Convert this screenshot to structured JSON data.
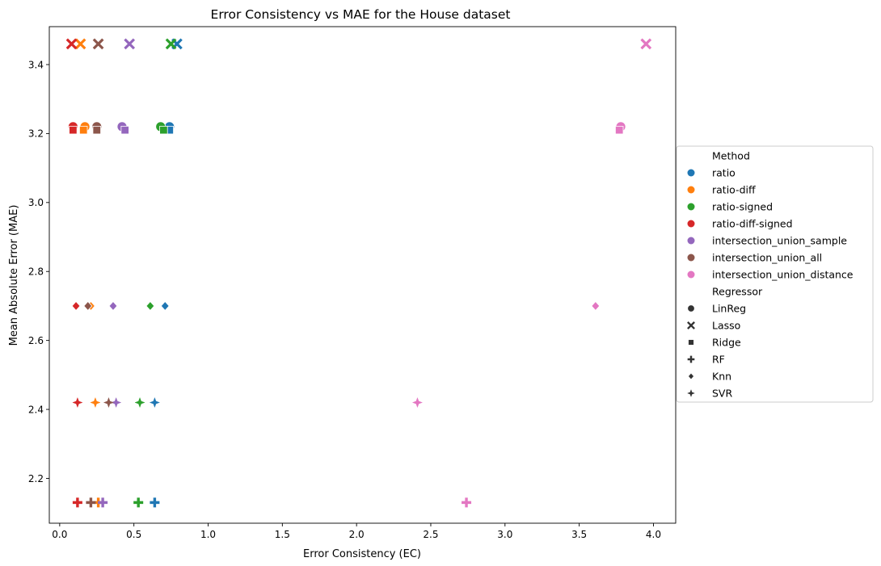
{
  "chart_data": {
    "type": "scatter",
    "title": "Error Consistency vs MAE for the House dataset",
    "xlabel": "Error Consistency (EC)",
    "ylabel": "Mean Absolute Error (MAE)",
    "xlim": [
      -0.07,
      4.15
    ],
    "ylim": [
      2.07,
      3.51
    ],
    "xticks": [
      0.0,
      0.5,
      1.0,
      1.5,
      2.0,
      2.5,
      3.0,
      3.5,
      4.0
    ],
    "xtick_labels": [
      "0.0",
      "0.5",
      "1.0",
      "1.5",
      "2.0",
      "2.5",
      "3.0",
      "3.5",
      "4.0"
    ],
    "yticks": [
      2.2,
      2.4,
      2.6,
      2.8,
      3.0,
      3.2,
      3.4
    ],
    "ytick_labels": [
      "2.2",
      "2.4",
      "2.6",
      "2.8",
      "3.0",
      "3.2",
      "3.4"
    ],
    "grid": false,
    "legend": {
      "placement": "right",
      "hue_title": "Method",
      "style_title": "Regressor"
    },
    "methods": [
      {
        "name": "ratio",
        "color": "#1f77b4"
      },
      {
        "name": "ratio-diff",
        "color": "#ff7f0e"
      },
      {
        "name": "ratio-signed",
        "color": "#2ca02c"
      },
      {
        "name": "ratio-diff-signed",
        "color": "#d62728"
      },
      {
        "name": "intersection_union_sample",
        "color": "#9467bd"
      },
      {
        "name": "intersection_union_all",
        "color": "#8c564b"
      },
      {
        "name": "intersection_union_distance",
        "color": "#e377c2"
      }
    ],
    "regressors": [
      {
        "name": "LinReg",
        "marker": "circle",
        "mae": 3.22
      },
      {
        "name": "Lasso",
        "marker": "x",
        "mae": 3.46
      },
      {
        "name": "Ridge",
        "marker": "square",
        "mae": 3.21
      },
      {
        "name": "RF",
        "marker": "plus",
        "mae": 2.13
      },
      {
        "name": "Knn",
        "marker": "diamond",
        "mae": 2.7
      },
      {
        "name": "SVR",
        "marker": "star",
        "mae": 2.42
      }
    ],
    "points": [
      {
        "method": "ratio",
        "regressor": "LinReg",
        "ec": 0.74,
        "mae": 3.22
      },
      {
        "method": "ratio-diff",
        "regressor": "LinReg",
        "ec": 0.17,
        "mae": 3.22
      },
      {
        "method": "ratio-signed",
        "regressor": "LinReg",
        "ec": 0.68,
        "mae": 3.22
      },
      {
        "method": "ratio-diff-signed",
        "regressor": "LinReg",
        "ec": 0.09,
        "mae": 3.22
      },
      {
        "method": "intersection_union_sample",
        "regressor": "LinReg",
        "ec": 0.42,
        "mae": 3.22
      },
      {
        "method": "intersection_union_all",
        "regressor": "LinReg",
        "ec": 0.25,
        "mae": 3.22
      },
      {
        "method": "intersection_union_distance",
        "regressor": "LinReg",
        "ec": 3.78,
        "mae": 3.22
      },
      {
        "method": "ratio",
        "regressor": "Lasso",
        "ec": 0.79,
        "mae": 3.46
      },
      {
        "method": "ratio-diff",
        "regressor": "Lasso",
        "ec": 0.14,
        "mae": 3.46
      },
      {
        "method": "ratio-signed",
        "regressor": "Lasso",
        "ec": 0.75,
        "mae": 3.46
      },
      {
        "method": "ratio-diff-signed",
        "regressor": "Lasso",
        "ec": 0.08,
        "mae": 3.46
      },
      {
        "method": "intersection_union_sample",
        "regressor": "Lasso",
        "ec": 0.47,
        "mae": 3.46
      },
      {
        "method": "intersection_union_all",
        "regressor": "Lasso",
        "ec": 0.26,
        "mae": 3.46
      },
      {
        "method": "intersection_union_distance",
        "regressor": "Lasso",
        "ec": 3.95,
        "mae": 3.46
      },
      {
        "method": "ratio",
        "regressor": "Ridge",
        "ec": 0.74,
        "mae": 3.21
      },
      {
        "method": "ratio-diff",
        "regressor": "Ridge",
        "ec": 0.16,
        "mae": 3.21
      },
      {
        "method": "ratio-signed",
        "regressor": "Ridge",
        "ec": 0.7,
        "mae": 3.21
      },
      {
        "method": "ratio-diff-signed",
        "regressor": "Ridge",
        "ec": 0.09,
        "mae": 3.21
      },
      {
        "method": "intersection_union_sample",
        "regressor": "Ridge",
        "ec": 0.44,
        "mae": 3.21
      },
      {
        "method": "intersection_union_all",
        "regressor": "Ridge",
        "ec": 0.25,
        "mae": 3.21
      },
      {
        "method": "intersection_union_distance",
        "regressor": "Ridge",
        "ec": 3.77,
        "mae": 3.21
      },
      {
        "method": "ratio",
        "regressor": "Knn",
        "ec": 0.71,
        "mae": 2.7
      },
      {
        "method": "ratio-diff",
        "regressor": "Knn",
        "ec": 0.21,
        "mae": 2.7
      },
      {
        "method": "ratio-signed",
        "regressor": "Knn",
        "ec": 0.61,
        "mae": 2.7
      },
      {
        "method": "ratio-diff-signed",
        "regressor": "Knn",
        "ec": 0.11,
        "mae": 2.7
      },
      {
        "method": "intersection_union_sample",
        "regressor": "Knn",
        "ec": 0.36,
        "mae": 2.7
      },
      {
        "method": "intersection_union_all",
        "regressor": "Knn",
        "ec": 0.19,
        "mae": 2.7
      },
      {
        "method": "intersection_union_distance",
        "regressor": "Knn",
        "ec": 3.61,
        "mae": 2.7
      },
      {
        "method": "ratio",
        "regressor": "SVR",
        "ec": 0.64,
        "mae": 2.42
      },
      {
        "method": "ratio-diff",
        "regressor": "SVR",
        "ec": 0.24,
        "mae": 2.42
      },
      {
        "method": "ratio-signed",
        "regressor": "SVR",
        "ec": 0.54,
        "mae": 2.42
      },
      {
        "method": "ratio-diff-signed",
        "regressor": "SVR",
        "ec": 0.12,
        "mae": 2.42
      },
      {
        "method": "intersection_union_sample",
        "regressor": "SVR",
        "ec": 0.38,
        "mae": 2.42
      },
      {
        "method": "intersection_union_all",
        "regressor": "SVR",
        "ec": 0.33,
        "mae": 2.42
      },
      {
        "method": "intersection_union_distance",
        "regressor": "SVR",
        "ec": 2.41,
        "mae": 2.42
      },
      {
        "method": "ratio",
        "regressor": "RF",
        "ec": 0.64,
        "mae": 2.13
      },
      {
        "method": "ratio-diff",
        "regressor": "RF",
        "ec": 0.26,
        "mae": 2.13
      },
      {
        "method": "ratio-signed",
        "regressor": "RF",
        "ec": 0.53,
        "mae": 2.13
      },
      {
        "method": "ratio-diff-signed",
        "regressor": "RF",
        "ec": 0.12,
        "mae": 2.13
      },
      {
        "method": "intersection_union_sample",
        "regressor": "RF",
        "ec": 0.29,
        "mae": 2.13
      },
      {
        "method": "intersection_union_all",
        "regressor": "RF",
        "ec": 0.21,
        "mae": 2.13
      },
      {
        "method": "intersection_union_distance",
        "regressor": "RF",
        "ec": 2.74,
        "mae": 2.13
      }
    ]
  }
}
